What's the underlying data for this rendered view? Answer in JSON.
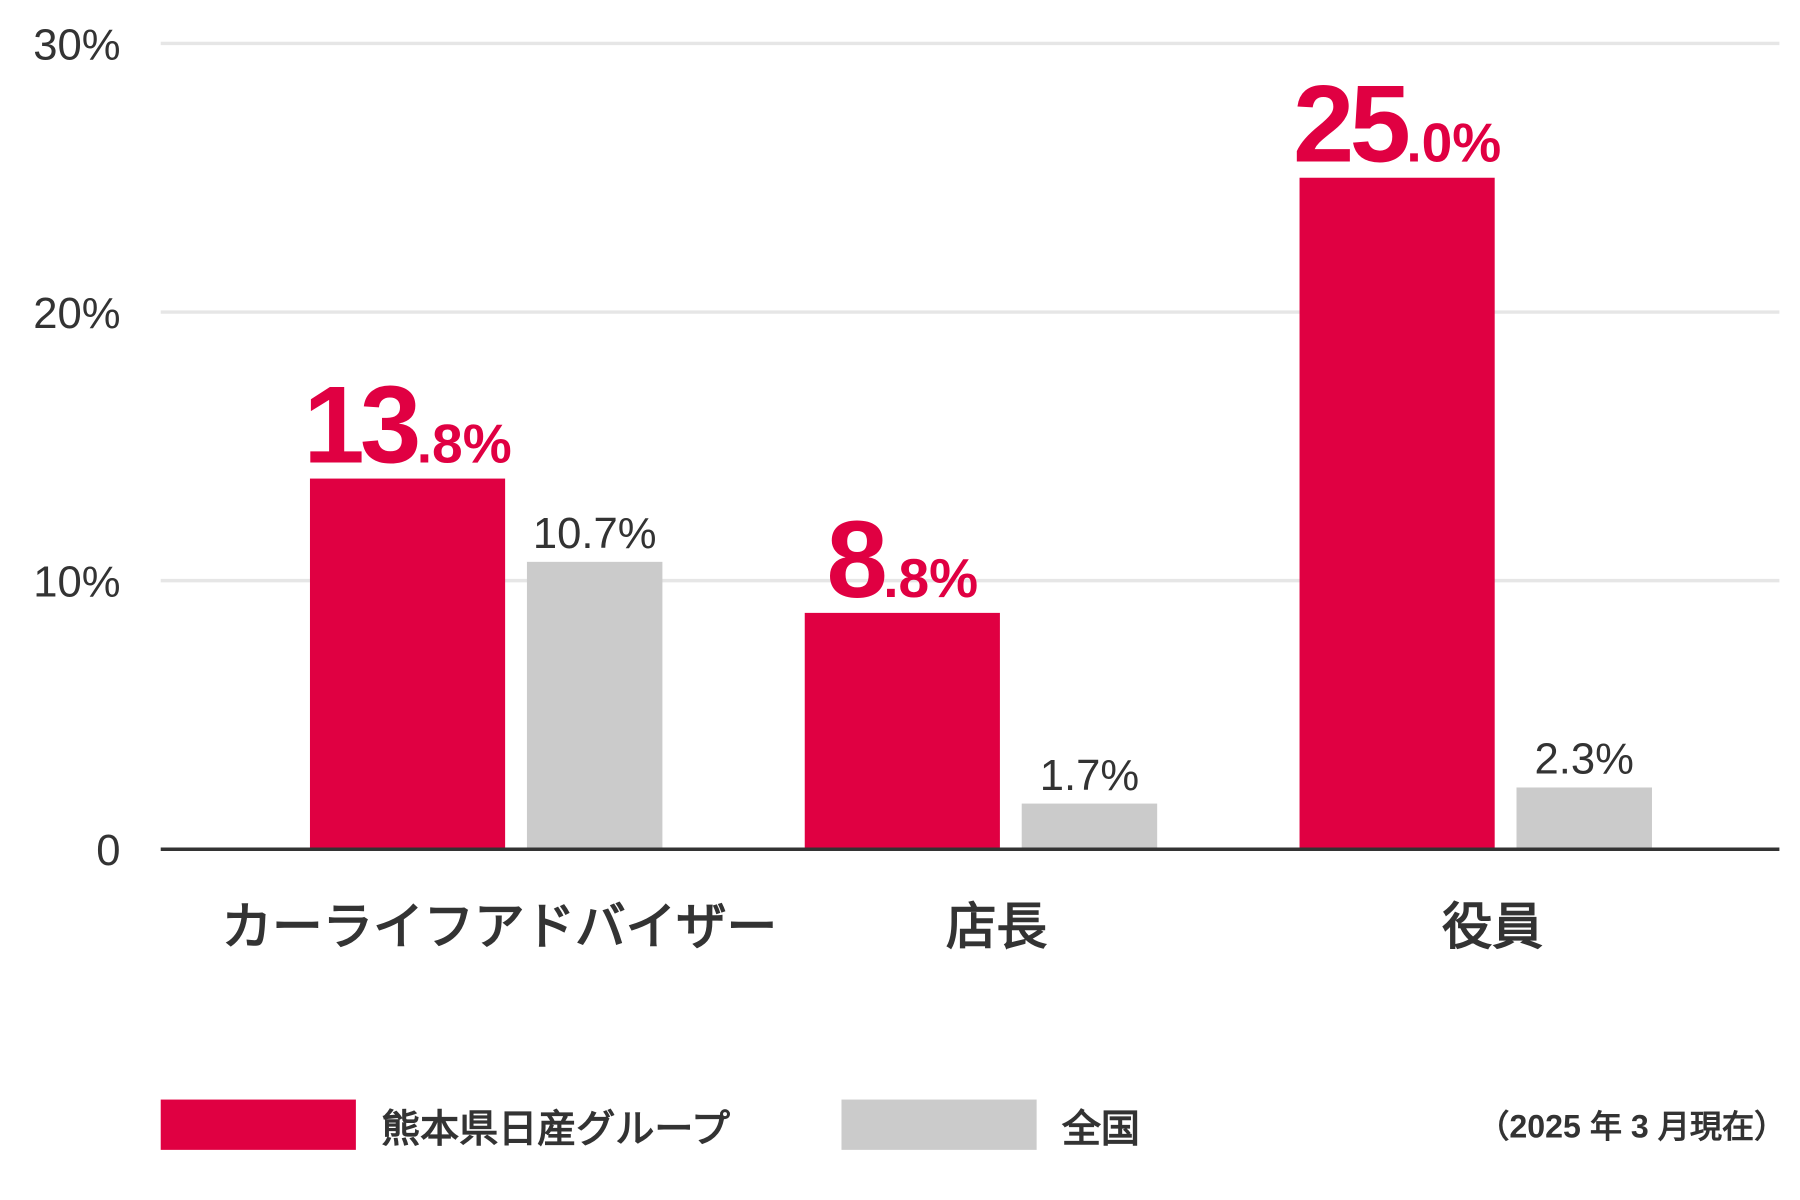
{
  "chart_data": {
    "type": "bar",
    "categories": [
      "カーライフアドバイザー",
      "店長",
      "役員"
    ],
    "series": [
      {
        "name": "熊本県日産グループ",
        "values": [
          13.8,
          8.8,
          25.0
        ],
        "labels": [
          [
            "13",
            ".8%"
          ],
          [
            "8",
            ".8%"
          ],
          [
            "25",
            ".0%"
          ]
        ],
        "color": "#e00042"
      },
      {
        "name": "全国",
        "values": [
          10.7,
          1.7,
          2.3
        ],
        "labels": [
          "10.7%",
          "1.7%",
          "2.3%"
        ],
        "color": "#cbcbcb"
      }
    ],
    "yticks": [
      {
        "v": 0,
        "label": "0"
      },
      {
        "v": 10,
        "label": "10%"
      },
      {
        "v": 20,
        "label": "20%"
      },
      {
        "v": 30,
        "label": "30%"
      }
    ],
    "ylim": [
      0,
      30
    ],
    "grid": true,
    "legend_placement": "bottom",
    "note": "（2025 年 3 月現在）"
  }
}
